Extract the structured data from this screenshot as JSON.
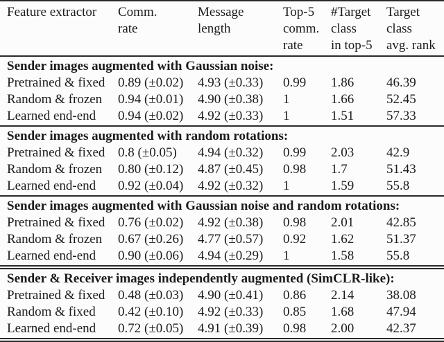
{
  "colors": {
    "text": "#1b1b1b",
    "rule": "#2a2a2a",
    "background": "#fcfcfc"
  },
  "table": {
    "header": [
      {
        "lines": [
          "Feature extractor"
        ]
      },
      {
        "lines": [
          "Comm.",
          "rate"
        ]
      },
      {
        "lines": [
          "Message",
          "length"
        ]
      },
      {
        "lines": [
          "Top-5",
          "comm.",
          "rate"
        ]
      },
      {
        "lines": [
          "#Target",
          "class",
          "in top-5"
        ]
      },
      {
        "lines": [
          "Target",
          "class",
          "avg. rank"
        ]
      }
    ],
    "sections": [
      {
        "title": "Sender images augmented with Gaussian noise:",
        "rows": [
          {
            "cells": [
              "Pretrained & fixed",
              "0.89 (±0.02)",
              "4.93 (±0.33)",
              "0.99",
              "1.86",
              "46.39"
            ]
          },
          {
            "cells": [
              "Random & frozen",
              "0.94 (±0.01)",
              "4.90 (±0.38)",
              "1",
              "1.66",
              "52.45"
            ]
          },
          {
            "cells": [
              "Learned end-end",
              "0.94 (±0.02)",
              "4.92 (±0.33)",
              "1",
              "1.51",
              "57.33"
            ]
          }
        ]
      },
      {
        "title": "Sender images augmented with random rotations:",
        "rows": [
          {
            "cells": [
              "Pretrained & fixed",
              "0.8 (±0.05)",
              "4.94 (±0.32)",
              "0.99",
              "2.03",
              "42.9"
            ]
          },
          {
            "cells": [
              "Random & frozen",
              "0.80 (±0.12)",
              "4.87 (±0.45)",
              "0.98",
              "1.7",
              "51.43"
            ]
          },
          {
            "cells": [
              "Learned end-end",
              "0.92 (±0.04)",
              "4.92 (±0.32)",
              "1",
              "1.59",
              "55.8"
            ]
          }
        ]
      },
      {
        "title": "Sender images augmented with Gaussian noise and random rotations:",
        "rows": [
          {
            "cells": [
              "Pretrained & fixed",
              "0.76 (±0.02)",
              "4.92 (±0.38)",
              "0.98",
              "2.01",
              "42.85"
            ]
          },
          {
            "cells": [
              "Random & frozen",
              "0.67 (±0.26)",
              "4.77 (±0.57)",
              "0.92",
              "1.62",
              "51.37"
            ]
          },
          {
            "cells": [
              "Learned end-end",
              "0.90 (±0.06)",
              "4.94 (±0.29)",
              "1",
              "1.58",
              "55.8"
            ]
          }
        ]
      },
      {
        "title": "Sender & Receiver images independently augmented (SimCLR-like):",
        "rows": [
          {
            "cells": [
              "Pretrained & fixed",
              "0.48 (±0.03)",
              "4.90 (±0.41)",
              "0.86",
              "2.14",
              "38.08"
            ]
          },
          {
            "cells": [
              "Random & fixed",
              "0.42 (±0.10)",
              "4.92 (±0.33)",
              "0.85",
              "1.68",
              "47.94"
            ]
          },
          {
            "cells": [
              "Learned end-end",
              "0.72 (±0.05)",
              "4.91 (±0.39)",
              "0.98",
              "2.00",
              "42.37"
            ]
          }
        ]
      }
    ]
  }
}
